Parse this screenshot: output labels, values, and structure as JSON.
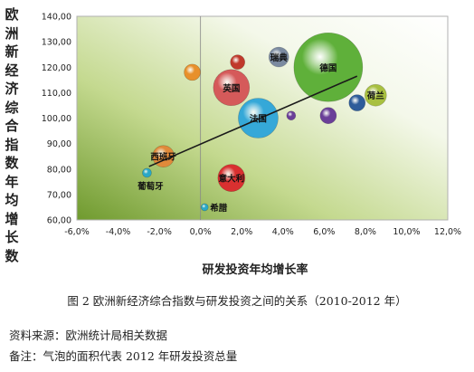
{
  "chart_data": {
    "type": "bubble",
    "ylabel": "欧洲新经济综合指数年均增长数",
    "xlabel": "研发投资年均增长率",
    "xlim": [
      -6,
      12
    ],
    "ylim": [
      60,
      140
    ],
    "xticks": [
      "-6,0%",
      "-4,0%",
      "-2,0%",
      "0,0%",
      "2,0%",
      "4,0%",
      "6,0%",
      "8,0%",
      "10,0%",
      "12,0%"
    ],
    "yticks": [
      "60,00",
      "70,00",
      "80,00",
      "90,00",
      "100,00",
      "110,00",
      "120,00",
      "130,00",
      "140,00"
    ],
    "points": [
      {
        "label": "德国",
        "x": 6.2,
        "y": 120,
        "size": 38,
        "color": "#5fb03a"
      },
      {
        "label": "瑞典",
        "x": 3.8,
        "y": 124,
        "size": 11,
        "color": "#7b8aa0"
      },
      {
        "label": "",
        "x": 1.8,
        "y": 122,
        "size": 8,
        "color": "#c0392b"
      },
      {
        "label": "",
        "x": -0.4,
        "y": 118,
        "size": 9,
        "color": "#e8902b"
      },
      {
        "label": "英国",
        "x": 1.5,
        "y": 112,
        "size": 20,
        "color": "#d55a5a"
      },
      {
        "label": "荷兰",
        "x": 8.5,
        "y": 109,
        "size": 12,
        "color": "#a8c040"
      },
      {
        "label": "",
        "x": 7.6,
        "y": 106,
        "size": 9,
        "color": "#2e5c9a"
      },
      {
        "label": "",
        "x": 6.2,
        "y": 101,
        "size": 9,
        "color": "#6a3f98"
      },
      {
        "label": "",
        "x": 4.4,
        "y": 101,
        "size": 5,
        "color": "#6a3f98"
      },
      {
        "label": "法国",
        "x": 2.8,
        "y": 100,
        "size": 22,
        "color": "#35a8d8"
      },
      {
        "label": "西班牙",
        "x": -1.8,
        "y": 85,
        "size": 12,
        "color": "#e08a3a"
      },
      {
        "label": "葡萄牙",
        "x": -2.6,
        "y": 78.5,
        "size": 5,
        "color": "#2aa8c8"
      },
      {
        "label": "意大利",
        "x": 1.5,
        "y": 76.5,
        "size": 15,
        "color": "#d93030"
      },
      {
        "label": "希腊",
        "x": 0.2,
        "y": 65,
        "size": 4,
        "color": "#2aa8c8"
      }
    ],
    "trendline": {
      "from": [
        -2.5,
        81
      ],
      "to": [
        7.6,
        116.5
      ]
    }
  },
  "caption": "图 2 欧洲新经济综合指数与研发投资之间的关系（2010-2012 年）",
  "notes": {
    "source": "资料来源：欧洲统计局相关数据",
    "remark": "备注：气泡的面积代表 2012 年研发投资总量"
  }
}
